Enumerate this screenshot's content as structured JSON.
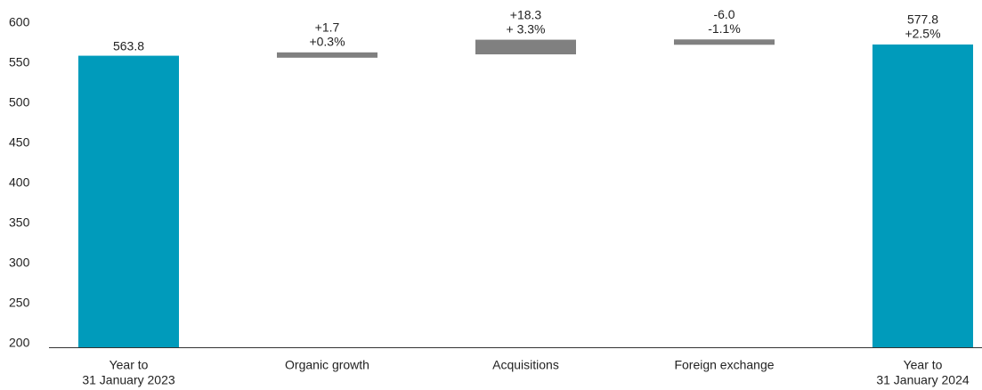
{
  "chart_data": {
    "type": "waterfall",
    "categories": [
      [
        "Year to",
        "31 January 2023"
      ],
      "Organic growth",
      "Acquisitions",
      "Foreign exchange",
      [
        "Year to",
        "31 January 2024"
      ]
    ],
    "measures": [
      "total",
      "relative",
      "relative",
      "relative",
      "total"
    ],
    "values": [
      563.8,
      1.7,
      18.3,
      -6.0,
      577.8
    ],
    "value_labels": [
      "563.8",
      "+1.7",
      "+18.3",
      "-6.0",
      "577.8"
    ],
    "change_values": [
      null,
      0.3,
      3.3,
      -1.1,
      2.5
    ],
    "change_labels": [
      null,
      "+0.3%",
      "+ 3.3%",
      "-1.1%",
      "+2.5%"
    ],
    "total_color": "#009bbb",
    "change_color": "#808080",
    "ylim": [
      200,
      600
    ],
    "yticks": [
      200,
      250,
      300,
      350,
      400,
      450,
      500,
      550,
      600
    ]
  }
}
